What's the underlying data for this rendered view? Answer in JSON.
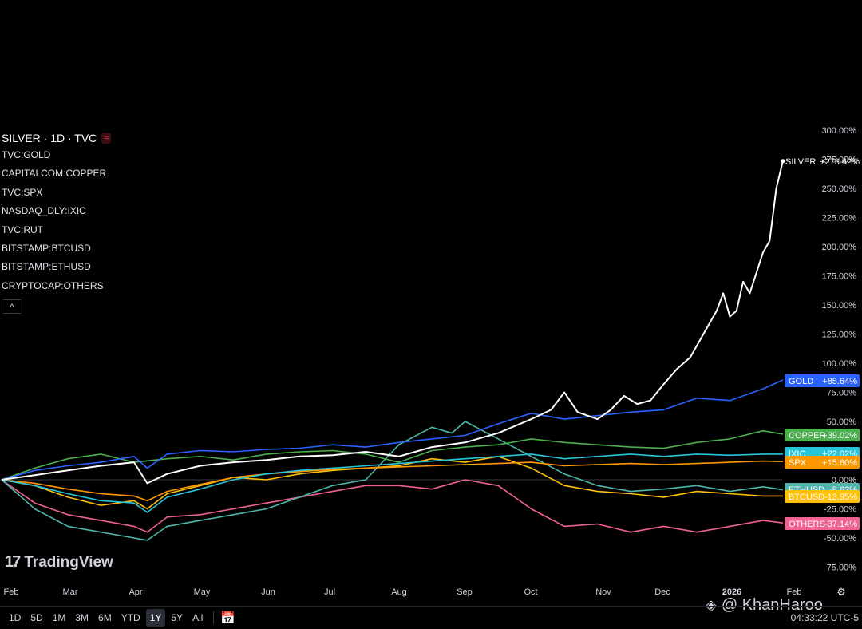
{
  "legend": {
    "title": "SILVER · 1D · TVC",
    "items": [
      "TVC:GOLD",
      "CAPITALCOM:COPPER",
      "TVC:SPX",
      "NASDAQ_DLY:IXIC",
      "TVC:RUT",
      "BITSTAMP:BTCUSD",
      "BITSTAMP:ETHUSD",
      "CRYPTOCAP:OTHERS"
    ],
    "collapse_icon": "chevron-up-icon"
  },
  "watermark": {
    "logo": "17",
    "name": "TradingView"
  },
  "time_ranges": [
    "1D",
    "5D",
    "1M",
    "3M",
    "6M",
    "YTD",
    "1Y",
    "5Y",
    "All"
  ],
  "active_range": "1Y",
  "clock": "04:33:22 UTC-5",
  "credit": {
    "icon": "binance-diamond-icon",
    "text": "@ KhanHaroo"
  },
  "settings_icon": "gear-icon",
  "chart_data": {
    "type": "line",
    "x_ticks": [
      "Feb",
      "Mar",
      "Apr",
      "May",
      "Jun",
      "Jul",
      "Aug",
      "Sep",
      "Oct",
      "Nov",
      "Dec",
      "2026",
      "Feb"
    ],
    "y_ticks": [
      300,
      275,
      250,
      225,
      200,
      175,
      150,
      125,
      100,
      75,
      50,
      25,
      0,
      -25,
      -50,
      -75
    ],
    "y_tick_labels": [
      "300.00%",
      "275.00%",
      "250.00%",
      "225.00%",
      "200.00%",
      "175.00%",
      "150.00%",
      "125.00%",
      "100.00%",
      "75.00%",
      "50.00%",
      "",
      "0.00%",
      "-25.00%",
      "-50.00%",
      "-75.00%"
    ],
    "ylim": [
      -80,
      310
    ],
    "xlim": [
      0,
      12
    ],
    "grid": false,
    "series": [
      {
        "name": "SILVER",
        "color": "#ffffff",
        "label": "+273.42%",
        "x": [
          0,
          0.5,
          1,
          1.5,
          2,
          2.2,
          2.5,
          3,
          3.5,
          4,
          4.5,
          5,
          5.5,
          6,
          6.5,
          7,
          7.5,
          8,
          8.3,
          8.5,
          8.7,
          9,
          9.2,
          9.4,
          9.6,
          9.8,
          10,
          10.2,
          10.4,
          10.6,
          10.8,
          10.9,
          11,
          11.1,
          11.2,
          11.3,
          11.5,
          11.6,
          11.7,
          11.8
        ],
        "y": [
          0,
          4,
          8,
          12,
          15,
          -3,
          5,
          12,
          15,
          17,
          20,
          21,
          24,
          20,
          28,
          32,
          40,
          52,
          60,
          75,
          58,
          52,
          60,
          72,
          65,
          68,
          82,
          95,
          105,
          125,
          145,
          160,
          140,
          145,
          170,
          160,
          195,
          205,
          250,
          273.42
        ]
      },
      {
        "name": "GOLD",
        "color": "#2962ff",
        "label": "+85.64%",
        "x": [
          0,
          0.5,
          1,
          1.5,
          2,
          2.2,
          2.5,
          3,
          3.5,
          4,
          4.5,
          5,
          5.5,
          6,
          6.5,
          7,
          7.5,
          8,
          8.5,
          9,
          9.5,
          10,
          10.5,
          11,
          11.5,
          11.8
        ],
        "y": [
          0,
          8,
          12,
          15,
          20,
          10,
          22,
          25,
          24,
          26,
          27,
          30,
          28,
          32,
          35,
          38,
          48,
          57,
          52,
          55,
          58,
          60,
          70,
          68,
          78,
          85.64
        ]
      },
      {
        "name": "COPPER",
        "color": "#4caf50",
        "label": "+39.02%",
        "x": [
          0,
          0.5,
          1,
          1.5,
          2,
          2.5,
          3,
          3.5,
          4,
          4.5,
          5,
          5.5,
          6,
          6.5,
          7,
          7.5,
          8,
          8.5,
          9,
          9.5,
          10,
          10.5,
          11,
          11.5,
          11.8
        ],
        "y": [
          0,
          10,
          18,
          22,
          15,
          18,
          20,
          17,
          22,
          24,
          25,
          22,
          15,
          25,
          28,
          30,
          35,
          32,
          30,
          28,
          27,
          32,
          35,
          42,
          39.02
        ]
      },
      {
        "name": "IXIC",
        "color": "#26c6da",
        "label": "+22.02%",
        "x": [
          0,
          0.5,
          1,
          1.5,
          2,
          2.2,
          2.5,
          3,
          3.5,
          4,
          4.5,
          5,
          5.5,
          6,
          6.5,
          7,
          7.5,
          8,
          8.5,
          9,
          9.5,
          10,
          10.5,
          11,
          11.5,
          11.8
        ],
        "y": [
          0,
          -5,
          -12,
          -18,
          -20,
          -28,
          -15,
          -8,
          0,
          5,
          8,
          10,
          12,
          14,
          16,
          18,
          20,
          22,
          18,
          20,
          22,
          20,
          22,
          21,
          22,
          22.02
        ]
      },
      {
        "name": "SPX",
        "color": "#ff9800",
        "label": "+15.60%",
        "x": [
          0,
          0.5,
          1,
          1.5,
          2,
          2.2,
          2.5,
          3,
          3.5,
          4,
          4.5,
          5,
          5.5,
          6,
          6.5,
          7,
          7.5,
          8,
          8.5,
          9,
          9.5,
          10,
          10.5,
          11,
          11.5,
          11.8
        ],
        "y": [
          0,
          -3,
          -8,
          -12,
          -14,
          -18,
          -10,
          -4,
          2,
          5,
          7,
          9,
          10,
          11,
          12,
          13,
          14,
          15,
          12,
          13,
          14,
          13,
          14,
          15,
          16,
          15.6
        ]
      },
      {
        "name": "ETHUSD",
        "color": "#4db6ac",
        "label": "-8.63%",
        "x": [
          0,
          0.5,
          1,
          1.5,
          2,
          2.2,
          2.5,
          3,
          3.5,
          4,
          4.5,
          5,
          5.5,
          6,
          6.5,
          6.8,
          7,
          7.5,
          8,
          8.5,
          9,
          9.5,
          10,
          10.5,
          11,
          11.5,
          11.8
        ],
        "y": [
          0,
          -25,
          -40,
          -45,
          -50,
          -52,
          -40,
          -35,
          -30,
          -25,
          -15,
          -5,
          0,
          30,
          45,
          40,
          50,
          35,
          20,
          5,
          -5,
          -10,
          -8,
          -5,
          -10,
          -6,
          -8.63
        ]
      },
      {
        "name": "BTCUSD",
        "color": "#ffc107",
        "label": "-13.95%",
        "x": [
          0,
          0.5,
          1,
          1.5,
          2,
          2.2,
          2.5,
          3,
          3.5,
          4,
          4.5,
          5,
          5.5,
          6,
          6.5,
          7,
          7.5,
          8,
          8.5,
          9,
          9.5,
          10,
          10.5,
          11,
          11.5,
          11.8
        ],
        "y": [
          0,
          -5,
          -15,
          -22,
          -18,
          -25,
          -12,
          -5,
          2,
          0,
          5,
          8,
          10,
          12,
          18,
          15,
          20,
          10,
          -5,
          -10,
          -12,
          -15,
          -10,
          -12,
          -14,
          -13.95
        ]
      },
      {
        "name": "OTHERS",
        "color": "#f06292",
        "label": "-37.14%",
        "x": [
          0,
          0.5,
          1,
          1.5,
          2,
          2.2,
          2.5,
          3,
          3.5,
          4,
          4.5,
          5,
          5.5,
          6,
          6.5,
          7,
          7.5,
          8,
          8.5,
          9,
          9.5,
          10,
          10.5,
          11,
          11.5,
          11.8
        ],
        "y": [
          0,
          -20,
          -30,
          -35,
          -40,
          -45,
          -32,
          -30,
          -25,
          -20,
          -15,
          -10,
          -5,
          -5,
          -8,
          0,
          -5,
          -25,
          -40,
          -38,
          -45,
          -40,
          -45,
          -40,
          -35,
          -37.14
        ]
      }
    ]
  }
}
